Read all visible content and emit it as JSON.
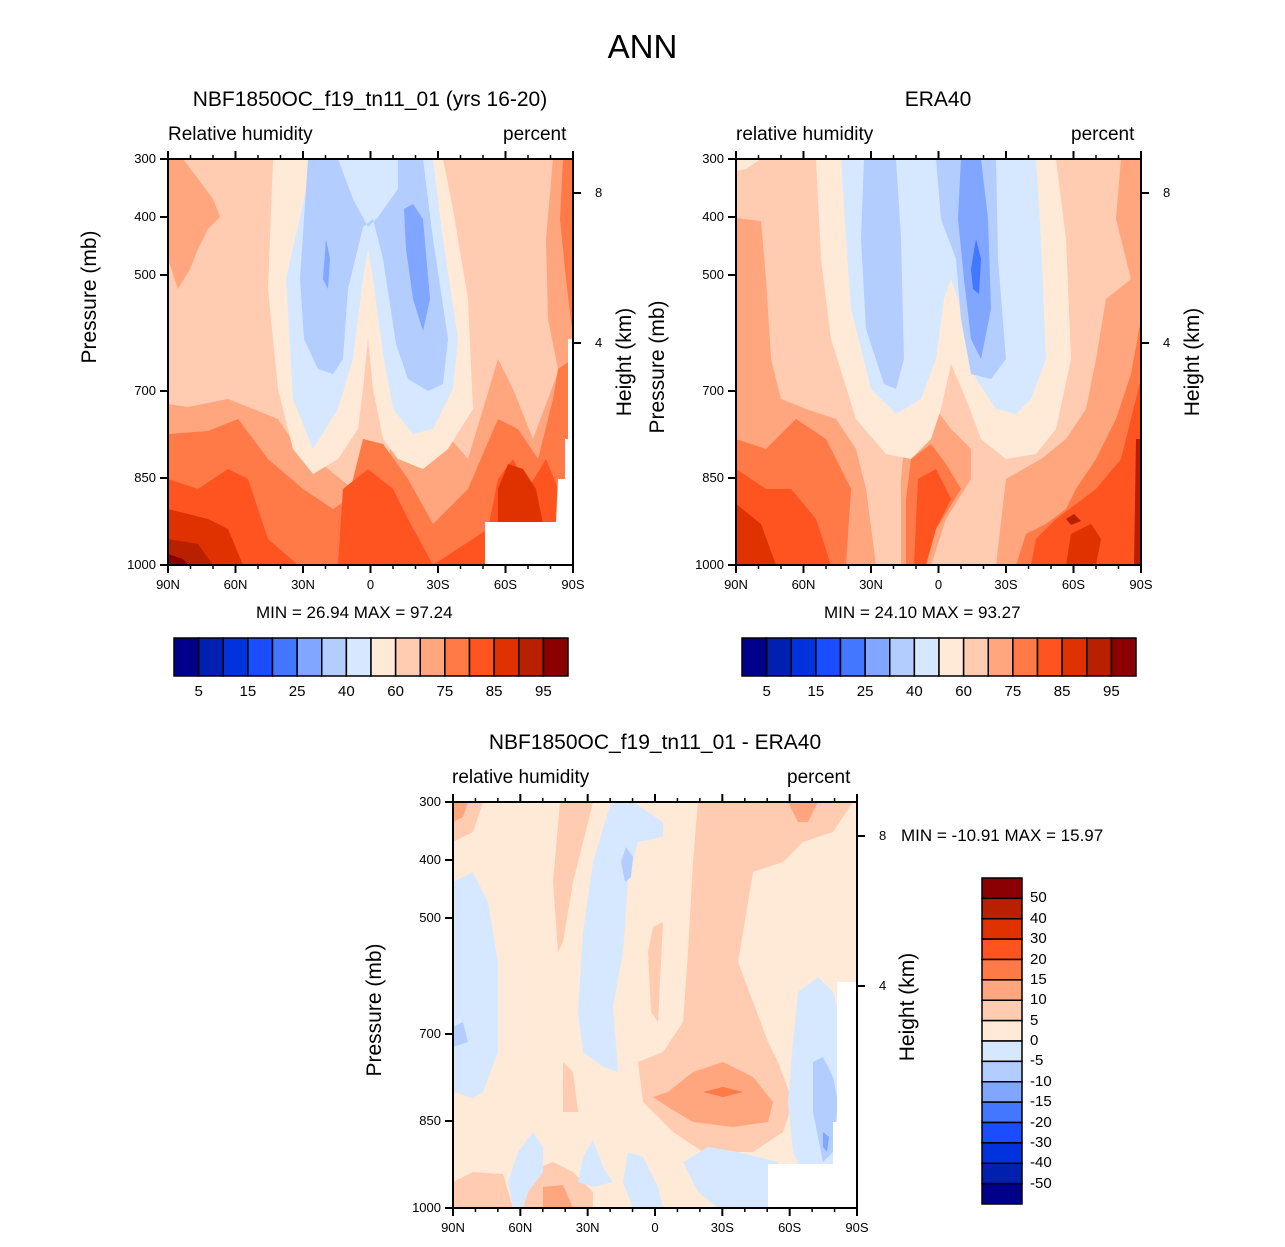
{
  "chart_data": [
    {
      "type": "heatmap",
      "title": "NBF1850OC_f19_tn11_01 (yrs 16-20)",
      "left_string": "Relative humidity",
      "right_string": "percent",
      "xlabel": "",
      "ylabel": "Pressure (mb)",
      "ylabel_right": "Height (km)",
      "x_ticks": [
        "90N",
        "60N",
        "30N",
        "0",
        "30S",
        "60S",
        "90S"
      ],
      "y_ticks": [
        "300",
        "400",
        "500",
        "700",
        "850",
        "1000"
      ],
      "y_right_ticks": [
        "8",
        "4"
      ],
      "ylim": [
        1000,
        300
      ],
      "xlim": [
        "90N",
        "90S"
      ],
      "min_label": "MIN =  26.94  MAX =  97.24",
      "min": 26.94,
      "max": 97.24
    },
    {
      "type": "heatmap",
      "title": "ERA40",
      "left_string": "relative humidity",
      "right_string": "percent",
      "xlabel": "",
      "ylabel": "Pressure (mb)",
      "ylabel_right": "Height (km)",
      "x_ticks": [
        "90N",
        "60N",
        "30N",
        "0",
        "30S",
        "60S",
        "90S"
      ],
      "y_ticks": [
        "300",
        "400",
        "500",
        "700",
        "850",
        "1000"
      ],
      "y_right_ticks": [
        "8",
        "4"
      ],
      "ylim": [
        1000,
        300
      ],
      "xlim": [
        "90N",
        "90S"
      ],
      "min_label": "MIN =  24.10  MAX =  93.27",
      "min": 24.1,
      "max": 93.27
    },
    {
      "type": "heatmap",
      "title": "NBF1850OC_f19_tn11_01 - ERA40",
      "left_string": "relative humidity",
      "right_string": "percent",
      "xlabel": "",
      "ylabel": "Pressure (mb)",
      "ylabel_right": "Height (km)",
      "x_ticks": [
        "90N",
        "60N",
        "30N",
        "0",
        "30S",
        "60S",
        "90S"
      ],
      "y_ticks": [
        "300",
        "400",
        "500",
        "700",
        "850",
        "1000"
      ],
      "y_right_ticks": [
        "8",
        "4"
      ],
      "ylim": [
        1000,
        300
      ],
      "xlim": [
        "90N",
        "90S"
      ],
      "min_label": "MIN = -10.91  MAX =  15.97",
      "min": -10.91,
      "max": 15.97
    }
  ],
  "page_title": "ANN",
  "colorbar_abs": {
    "colors": [
      "#00008b",
      "#0020b0",
      "#0033dd",
      "#1a4dff",
      "#4477ff",
      "#80a6ff",
      "#b3cdff",
      "#d6e8ff",
      "#ffead8",
      "#ffcbb1",
      "#ffa67e",
      "#ff7a47",
      "#ff541f",
      "#e03200",
      "#b82000",
      "#8b0000"
    ],
    "labels": [
      "5",
      "15",
      "25",
      "40",
      "60",
      "75",
      "85",
      "95"
    ]
  },
  "colorbar_diff": {
    "colors": [
      "#00008b",
      "#0020b0",
      "#0033dd",
      "#1a4dff",
      "#4477ff",
      "#80a6ff",
      "#b3cdff",
      "#d6e8ff",
      "#ffead8",
      "#ffcbb1",
      "#ffa67e",
      "#ff7a47",
      "#ff541f",
      "#e03200",
      "#b82000",
      "#8b0000"
    ],
    "labels": [
      "50",
      "40",
      "30",
      "20",
      "15",
      "10",
      "5",
      "0",
      "-5",
      "-10",
      "-15",
      "-20",
      "-30",
      "-40",
      "-50"
    ]
  }
}
